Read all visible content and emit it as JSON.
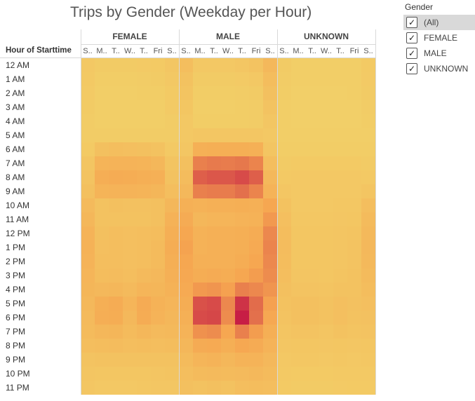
{
  "title": "Trips by Gender (Weekday per Hour)",
  "row_header": "Hour of Starttime",
  "legend": {
    "title": "Gender",
    "items": [
      {
        "label": "(All)",
        "checked": true,
        "selected": true
      },
      {
        "label": "FEMALE",
        "checked": true,
        "selected": false
      },
      {
        "label": "MALE",
        "checked": true,
        "selected": false
      },
      {
        "label": "UNKNOWN",
        "checked": true,
        "selected": false
      }
    ]
  },
  "colors": {
    "low": "#f2d068",
    "mid": "#f6a550",
    "high": "#c71e45"
  },
  "chart_data": {
    "type": "heatmap",
    "title": "Trips by Gender (Weekday per Hour)",
    "groups": [
      "FEMALE",
      "MALE",
      "UNKNOWN"
    ],
    "day_labels": [
      "S..",
      "M..",
      "T..",
      "W..",
      "T..",
      "Fri",
      "S.."
    ],
    "rows": [
      "12 AM",
      "1 AM",
      "2 AM",
      "3 AM",
      "4 AM",
      "5 AM",
      "6 AM",
      "7 AM",
      "8 AM",
      "9 AM",
      "10 AM",
      "11 AM",
      "12 PM",
      "1 PM",
      "2 PM",
      "3 PM",
      "4 PM",
      "5 PM",
      "6 PM",
      "7 PM",
      "8 PM",
      "9 PM",
      "10 PM",
      "11 PM"
    ],
    "values": {
      "FEMALE": [
        [
          10,
          6,
          6,
          6,
          7,
          8,
          12
        ],
        [
          9,
          4,
          4,
          4,
          5,
          6,
          10
        ],
        [
          7,
          3,
          3,
          3,
          4,
          4,
          8
        ],
        [
          6,
          3,
          3,
          3,
          3,
          3,
          7
        ],
        [
          5,
          3,
          3,
          3,
          3,
          3,
          5
        ],
        [
          5,
          5,
          5,
          5,
          5,
          5,
          5
        ],
        [
          8,
          20,
          22,
          21,
          20,
          17,
          9
        ],
        [
          14,
          35,
          37,
          36,
          35,
          32,
          15
        ],
        [
          16,
          43,
          45,
          44,
          42,
          40,
          18
        ],
        [
          20,
          35,
          37,
          36,
          35,
          33,
          22
        ],
        [
          28,
          18,
          20,
          19,
          19,
          20,
          32
        ],
        [
          32,
          17,
          18,
          18,
          18,
          20,
          38
        ],
        [
          36,
          20,
          22,
          21,
          22,
          24,
          42
        ],
        [
          38,
          21,
          22,
          21,
          22,
          26,
          44
        ],
        [
          36,
          22,
          22,
          21,
          23,
          27,
          42
        ],
        [
          34,
          24,
          25,
          22,
          28,
          30,
          40
        ],
        [
          33,
          30,
          32,
          28,
          34,
          33,
          38
        ],
        [
          30,
          42,
          45,
          34,
          46,
          38,
          34
        ],
        [
          28,
          43,
          44,
          30,
          45,
          36,
          31
        ],
        [
          26,
          32,
          33,
          26,
          32,
          28,
          29
        ],
        [
          22,
          24,
          25,
          22,
          24,
          23,
          24
        ],
        [
          16,
          18,
          18,
          17,
          18,
          18,
          18
        ],
        [
          14,
          13,
          13,
          13,
          13,
          14,
          15
        ],
        [
          12,
          10,
          10,
          10,
          11,
          12,
          12
        ]
      ],
      "MALE": [
        [
          22,
          10,
          10,
          10,
          12,
          16,
          30
        ],
        [
          18,
          6,
          6,
          6,
          7,
          10,
          24
        ],
        [
          15,
          4,
          4,
          4,
          5,
          6,
          20
        ],
        [
          13,
          3,
          3,
          3,
          4,
          5,
          16
        ],
        [
          10,
          4,
          4,
          4,
          4,
          5,
          12
        ],
        [
          10,
          12,
          12,
          12,
          12,
          12,
          10
        ],
        [
          12,
          40,
          42,
          42,
          42,
          40,
          14
        ],
        [
          20,
          72,
          75,
          74,
          76,
          70,
          22
        ],
        [
          25,
          88,
          92,
          92,
          98,
          88,
          30
        ],
        [
          30,
          72,
          74,
          74,
          80,
          70,
          36
        ],
        [
          40,
          38,
          40,
          40,
          42,
          40,
          52
        ],
        [
          46,
          32,
          34,
          34,
          36,
          38,
          60
        ],
        [
          52,
          38,
          40,
          40,
          42,
          45,
          68
        ],
        [
          55,
          38,
          40,
          40,
          42,
          48,
          70
        ],
        [
          52,
          40,
          40,
          40,
          44,
          52,
          68
        ],
        [
          50,
          44,
          46,
          44,
          52,
          58,
          66
        ],
        [
          48,
          60,
          62,
          56,
          72,
          68,
          62
        ],
        [
          44,
          95,
          98,
          68,
          110,
          82,
          56
        ],
        [
          40,
          98,
          100,
          66,
          120,
          80,
          50
        ],
        [
          36,
          64,
          66,
          52,
          72,
          58,
          42
        ],
        [
          32,
          46,
          48,
          42,
          50,
          46,
          36
        ],
        [
          26,
          34,
          36,
          32,
          36,
          36,
          30
        ],
        [
          22,
          26,
          28,
          26,
          28,
          30,
          26
        ],
        [
          20,
          18,
          20,
          18,
          22,
          24,
          22
        ]
      ],
      "UNKNOWN": [
        [
          6,
          2,
          2,
          2,
          2,
          3,
          8
        ],
        [
          5,
          2,
          2,
          2,
          2,
          2,
          7
        ],
        [
          4,
          1,
          1,
          1,
          1,
          2,
          6
        ],
        [
          3,
          1,
          1,
          1,
          1,
          1,
          5
        ],
        [
          3,
          1,
          1,
          1,
          1,
          1,
          4
        ],
        [
          3,
          2,
          2,
          2,
          2,
          2,
          3
        ],
        [
          4,
          4,
          4,
          4,
          4,
          4,
          4
        ],
        [
          6,
          8,
          8,
          8,
          8,
          8,
          6
        ],
        [
          9,
          10,
          10,
          10,
          10,
          10,
          9
        ],
        [
          12,
          10,
          10,
          10,
          10,
          10,
          14
        ],
        [
          18,
          10,
          10,
          10,
          11,
          11,
          22
        ],
        [
          21,
          11,
          11,
          11,
          12,
          13,
          26
        ],
        [
          24,
          13,
          13,
          13,
          14,
          15,
          29
        ],
        [
          25,
          13,
          13,
          13,
          14,
          16,
          30
        ],
        [
          24,
          13,
          13,
          13,
          14,
          16,
          29
        ],
        [
          22,
          14,
          14,
          13,
          15,
          17,
          27
        ],
        [
          20,
          16,
          16,
          15,
          18,
          18,
          24
        ],
        [
          18,
          20,
          20,
          17,
          21,
          19,
          21
        ],
        [
          16,
          20,
          20,
          17,
          21,
          18,
          19
        ],
        [
          14,
          16,
          16,
          14,
          17,
          15,
          16
        ],
        [
          12,
          13,
          13,
          12,
          13,
          12,
          13
        ],
        [
          10,
          11,
          11,
          10,
          11,
          10,
          11
        ],
        [
          9,
          8,
          8,
          8,
          9,
          9,
          9
        ],
        [
          8,
          6,
          6,
          6,
          7,
          8,
          8
        ]
      ]
    }
  }
}
